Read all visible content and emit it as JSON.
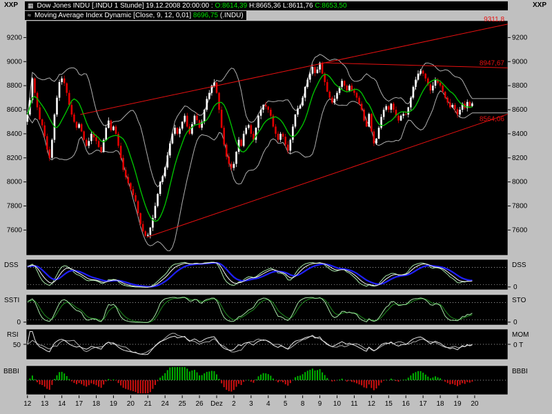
{
  "colors": {
    "desktop_bg": "#c0c0c0",
    "panel_bg": "#000000",
    "panel_border": "#cfcfcf",
    "header_text": "#ffffff",
    "quote_green": "#00e800",
    "candle_up": "#ffffff",
    "candle_down": "#e10000",
    "ma_line": "#00c000",
    "band_line": "#b0b0b0",
    "trend_line": "#e81010",
    "dss_main": "#2020ff",
    "dss_fast": "#f8f8f8",
    "dss_light": "#a8e8a8",
    "sto_fast": "#a8e8a8",
    "sto_slow": "#1e8c1e",
    "rsi_line": "#e8e8e8",
    "mom_line": "#b0b0b0",
    "hist_pos": "#00b400",
    "hist_neg": "#d01010",
    "grid_dotted": "#d8d8d8"
  },
  "corners": {
    "top_left": "XXP",
    "top_right": "XXP"
  },
  "header": {
    "title_icon": "▦",
    "indicator_icon": "≈",
    "title_segments": [
      {
        "text": "Dow Jones INDU [.INDU  1 Stunde] 19.12.2008 20:00:00 : ",
        "color": "#ffffff"
      },
      {
        "text": "O:8614,39 ",
        "color": "#00e800"
      },
      {
        "text": "H:8665,36 L:8611,76 ",
        "color": "#ffffff"
      },
      {
        "text": "C:8653,50",
        "color": "#00e800"
      }
    ],
    "indicator_line": {
      "segments": [
        {
          "text": "Moving Average Index Dynamic [Close, 9, 12, 0,01] ",
          "color": "#ffffff"
        },
        {
          "text": "8696,75",
          "color": "#00e800"
        },
        {
          "text": " (.INDU)",
          "color": "#ffffff"
        }
      ]
    }
  },
  "panels": {
    "dss": {
      "left_label": "DSS",
      "right_label": "DSS",
      "right_zero": "0"
    },
    "sto": {
      "left_label": "SSTI",
      "left_zero": "0",
      "right_label": "STO",
      "right_zero": "0"
    },
    "rsi": {
      "left_label": "RSI",
      "left_mid": "50",
      "right_label": "MOM",
      "right_mid": "0 T"
    },
    "bbbi": {
      "left_label": "BBBI",
      "right_label": "BBBI"
    }
  },
  "chart_data": {
    "type": "candlestick+oscillators",
    "symbol": "Dow Jones INDU (.INDU)",
    "timeframe": "1 Stunde",
    "last_bar": {
      "datetime": "19.12.2008 20:00:00",
      "open": 8614.39,
      "high": 8665.36,
      "low": 8611.76,
      "close": 8653.5
    },
    "moving_average_value": 8696.75,
    "price_axis_ticks": [
      9200,
      9000,
      8800,
      8600,
      8400,
      8200,
      8000,
      7800,
      7600
    ],
    "price_range": [
      7390,
      9340
    ],
    "bars_per_day": 7,
    "total_slots": 196,
    "date_labels": [
      "12",
      "13",
      "14",
      "17",
      "18",
      "19",
      "20",
      "21",
      "24",
      "25",
      "26",
      "Dez",
      "2",
      "3",
      "4",
      "5",
      "8",
      "9",
      "10",
      "11",
      "12",
      "15",
      "16",
      "17",
      "18",
      "19",
      "20"
    ],
    "daily_closes": [
      [
        8560,
        8680,
        8860,
        8740,
        8620,
        8520,
        8470
      ],
      [
        8380,
        8270,
        8200,
        8350,
        8560,
        8700,
        8830
      ],
      [
        8860,
        8820,
        8740,
        8640,
        8560,
        8500,
        8450
      ],
      [
        8480,
        8420,
        8350,
        8300,
        8340,
        8400,
        8370
      ],
      [
        8340,
        8290,
        8250,
        8350,
        8450,
        8510,
        8430
      ],
      [
        8460,
        8400,
        8300,
        8200,
        8100,
        8040,
        7990
      ],
      [
        7940,
        7890,
        7840,
        7740,
        7650,
        7590,
        7552
      ],
      [
        7560,
        7620,
        7700,
        7800,
        7900,
        8000,
        8046
      ],
      [
        8120,
        8220,
        8320,
        8400,
        8450,
        8400,
        8443
      ],
      [
        8500,
        8550,
        8460,
        8400,
        8480,
        8550,
        8513
      ],
      [
        8450,
        8500,
        8600,
        8690,
        8740,
        8800,
        8826
      ],
      [
        8740,
        8600,
        8450,
        8310,
        8210,
        8150,
        8116
      ],
      [
        8150,
        8250,
        8350,
        8300,
        8400,
        8450,
        8472
      ],
      [
        8400,
        8350,
        8450,
        8550,
        8600,
        8640,
        8626
      ],
      [
        8600,
        8550,
        8460,
        8400,
        8350,
        8400,
        8376
      ],
      [
        8310,
        8260,
        8350,
        8460,
        8560,
        8610,
        8635
      ],
      [
        8700,
        8790,
        8850,
        8900,
        8955,
        8905,
        8934
      ],
      [
        8990,
        8900,
        8830,
        8750,
        8700,
        8660,
        8691
      ],
      [
        8740,
        8790,
        8840,
        8800,
        8760,
        8800,
        8761
      ],
      [
        8740,
        8700,
        8650,
        8600,
        8510,
        8460,
        8565
      ],
      [
        8420,
        8320,
        8360,
        8450,
        8540,
        8600,
        8629
      ],
      [
        8600,
        8650,
        8600,
        8550,
        8510,
        8550,
        8564
      ],
      [
        8560,
        8620,
        8700,
        8790,
        8850,
        8900,
        8924
      ],
      [
        8900,
        8860,
        8810,
        8760,
        8800,
        8850,
        8824
      ],
      [
        8800,
        8750,
        8700,
        8660,
        8620,
        8640,
        8604
      ],
      [
        8560,
        8600,
        8650,
        8614,
        8665,
        8630,
        8653
      ]
    ],
    "moving_average": {
      "period": 9
    },
    "bands": {
      "period": 12,
      "stdev_mult": 1.7
    },
    "trend_lines": [
      {
        "from": {
          "i": 49,
          "p": 7540
        },
        "to": {
          "i": 196,
          "p": 8564.06
        },
        "label": "8564,06",
        "label_price": 8564.06,
        "label_dy": 10
      },
      {
        "from": {
          "i": 22,
          "p": 8560
        },
        "to": {
          "i": 196,
          "p": 9311.8
        },
        "label": "9311,8",
        "label_price": 9311.8,
        "label_dy": -4
      },
      {
        "from": {
          "i": 121,
          "p": 8990
        },
        "to": {
          "i": 196,
          "p": 8947.67
        },
        "label": "8947,67",
        "label_price": 8947.67,
        "label_dy": -4
      }
    ],
    "indicators": {
      "dss": {
        "stoch": 21,
        "smooth1": 4,
        "smooth2": 4,
        "signal": 6,
        "grid_levels": [
          78,
          12
        ]
      },
      "sto": {
        "stoch": 13,
        "smooth1": 3,
        "smooth2": 4,
        "grid_levels": [
          78,
          12
        ]
      },
      "rsi": {
        "period": 9,
        "mom_period": 10,
        "mom_scale": 20,
        "grid_levels": [
          50
        ]
      },
      "bbbi": {
        "ma_period": 20,
        "max_dev": 450
      }
    }
  }
}
